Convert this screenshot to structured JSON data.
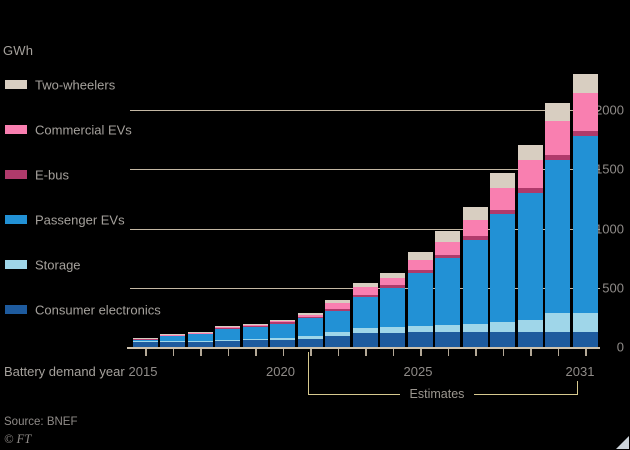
{
  "chart": {
    "unit_label": "GWh"
  },
  "chart_data": {
    "type": "bar",
    "stacked": true,
    "title": "",
    "ylabel": "GWh",
    "xlabel": "Battery demand year",
    "ylim": [
      0,
      2350
    ],
    "y_ticks": [
      0,
      500,
      1000,
      1500,
      2000
    ],
    "grid": "horizontal",
    "legend_position": "left",
    "x": [
      2015,
      2016,
      2017,
      2018,
      2019,
      2020,
      2021,
      2022,
      2023,
      2024,
      2025,
      2026,
      2027,
      2028,
      2029,
      2030,
      2031
    ],
    "x_tick_labels": [
      "2015",
      "2020",
      "2025",
      "2031"
    ],
    "estimates_from": 2021,
    "series": [
      {
        "name": "Consumer electronics",
        "color": "#1e5b9e",
        "values": [
          45,
          48,
          50,
          55,
          58,
          62,
          70,
          95,
          116,
          120,
          123,
          126,
          127,
          127,
          124,
          124,
          124
        ]
      },
      {
        "name": "Storage",
        "color": "#9fd6e9",
        "values": [
          2,
          3,
          4,
          6,
          8,
          12,
          20,
          34,
          42,
          50,
          55,
          60,
          70,
          87,
          104,
          165,
          165
        ]
      },
      {
        "name": "Passenger EVs",
        "color": "#2291d5",
        "values": [
          18,
          42,
          52,
          94,
          100,
          122,
          152,
          172,
          262,
          330,
          445,
          565,
          705,
          906,
          1072,
          1289,
          1490
        ]
      },
      {
        "name": "E-bus",
        "color": "#b03a6b",
        "values": [
          5,
          7,
          9,
          11,
          11,
          11,
          13,
          18,
          20,
          20,
          24,
          28,
          32,
          36,
          38,
          40,
          42
        ]
      },
      {
        "name": "Commercial EVs",
        "color": "#f97fb0",
        "values": [
          3,
          5,
          6,
          7,
          9,
          10,
          15,
          51,
          66,
          60,
          88,
          106,
          136,
          182,
          240,
          287,
          324
        ]
      },
      {
        "name": "Two-wheelers",
        "color": "#d8cec1",
        "values": [
          2,
          3,
          4,
          5,
          6,
          8,
          15,
          28,
          34,
          45,
          70,
          90,
          110,
          127,
          127,
          155,
          155
        ]
      }
    ],
    "totals": [
      75,
      108,
      125,
      178,
      192,
      225,
      285,
      398,
      540,
      625,
      805,
      975,
      1180,
      1465,
      1705,
      2060,
      2300
    ]
  },
  "x_axis": {
    "axis_label": "Battery demand year"
  },
  "y_axis": {
    "tick_labels": [
      "0",
      "500",
      "1000",
      "1500",
      "2000"
    ]
  },
  "annotations": {
    "estimates_label": "Estimates"
  },
  "footer": {
    "source": "Source: BNEF",
    "ft_mark": "© FT"
  },
  "colors": {
    "background": "#000000",
    "gridline": "#c4b8a4",
    "axis_line": "#cfc2ad",
    "tick_mark": "#b3a896",
    "bracket": "#d6c98f",
    "label_text": "#a5a19c",
    "tick_text": "#8f8b88"
  }
}
